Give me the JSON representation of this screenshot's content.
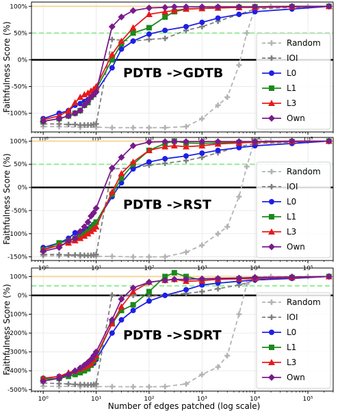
{
  "figure": {
    "xlabel": "Number of edges patched (log scale)",
    "ylabel": "Faithfulness Score (%)"
  },
  "colors": {
    "Random": "#b3b3b3",
    "IOI": "#7f7f7f",
    "L0": "#1f1fe6",
    "L1": "#1a8a1a",
    "L3": "#e61a1a",
    "Own": "#7a1a8c",
    "ref100": "#f5d89a",
    "ref50": "#90ee90",
    "zero": "#000000"
  },
  "chart_data": [
    {
      "type": "line",
      "title": "PDTB ->GDTB",
      "xlabel": "",
      "ylabel": "Faithfulness Score (%)",
      "xscale": "log",
      "xlim": [
        0.6,
        300000
      ],
      "ylim": [
        -135,
        108
      ],
      "yticks": [
        -100,
        -50,
        0,
        50,
        100
      ],
      "ytick_labels": [
        "-100%",
        "-50%",
        "0%",
        "50%",
        "100%"
      ],
      "xtick_labels": [
        "10⁰",
        "10¹",
        "10²",
        "10³",
        "10⁴",
        "10⁵"
      ],
      "reference_lines": [
        100,
        50,
        0
      ],
      "legend": [
        "Random",
        "IOI",
        "L0",
        "L1",
        "L3",
        "Own"
      ],
      "legend_position": "lower right",
      "series": [
        {
          "name": "Random",
          "x": [
            1,
            2,
            5,
            10,
            20,
            50,
            100,
            200,
            500,
            1000,
            2000,
            3000,
            5000,
            7000,
            10000,
            20000,
            50000,
            100000,
            250000
          ],
          "y": [
            -125,
            -125,
            -126,
            -126,
            -127,
            -127,
            -127,
            -127,
            -125,
            -110,
            -85,
            -70,
            -10,
            50,
            97,
            100,
            100,
            100,
            100
          ]
        },
        {
          "name": "IOI",
          "x": [
            1,
            2,
            3,
            4,
            5,
            6,
            7,
            8,
            9,
            10,
            20,
            50,
            100,
            200,
            500,
            1000,
            2000,
            5000,
            10000,
            50000,
            250000
          ],
          "y": [
            -120,
            -120,
            -121,
            -121,
            -122,
            -122,
            -122,
            -122,
            -121,
            -120,
            38,
            35,
            38,
            40,
            55,
            62,
            72,
            85,
            95,
            98,
            100
          ]
        },
        {
          "name": "L0",
          "x": [
            1,
            2,
            3,
            4,
            5,
            6,
            7,
            8,
            9,
            10,
            20,
            30,
            50,
            100,
            200,
            500,
            1000,
            2000,
            5000,
            10000,
            50000,
            250000
          ],
          "y": [
            -110,
            -100,
            -95,
            -85,
            -82,
            -78,
            -75,
            -70,
            -65,
            -60,
            -15,
            20,
            35,
            48,
            55,
            62,
            70,
            78,
            85,
            90,
            95,
            100
          ]
        },
        {
          "name": "L1",
          "x": [
            1,
            2,
            3,
            4,
            5,
            6,
            7,
            8,
            9,
            10,
            20,
            30,
            50,
            100,
            200,
            300,
            500,
            1000,
            2000,
            5000,
            10000,
            50000,
            250000
          ],
          "y": [
            -115,
            -110,
            -105,
            -100,
            -95,
            -85,
            -80,
            -70,
            -65,
            -55,
            0,
            30,
            50,
            60,
            80,
            90,
            95,
            96,
            97,
            98,
            99,
            99,
            100
          ]
        },
        {
          "name": "L3",
          "x": [
            1,
            2,
            3,
            4,
            5,
            6,
            7,
            8,
            9,
            10,
            20,
            30,
            50,
            100,
            200,
            300,
            500,
            1000,
            2000,
            5000,
            10000,
            50000,
            250000
          ],
          "y": [
            -112,
            -105,
            -95,
            -80,
            -70,
            -65,
            -62,
            -58,
            -55,
            -50,
            10,
            35,
            60,
            85,
            90,
            92,
            95,
            96,
            97,
            98,
            98,
            99,
            100
          ]
        },
        {
          "name": "Own",
          "x": [
            1,
            2,
            3,
            4,
            5,
            6,
            7,
            8,
            9,
            10,
            20,
            30,
            50,
            100,
            200,
            300,
            500,
            1000,
            2000,
            5000,
            10000,
            50000,
            250000
          ],
          "y": [
            -115,
            -110,
            -105,
            -100,
            -95,
            -85,
            -78,
            -70,
            -65,
            -60,
            62,
            80,
            92,
            97,
            98,
            99,
            99,
            99,
            99,
            99,
            99,
            100,
            100
          ]
        }
      ]
    },
    {
      "type": "line",
      "title": "PDTB ->RST",
      "xlabel": "",
      "ylabel": "Faithfulness Score (%)",
      "xscale": "log",
      "xlim": [
        0.6,
        300000
      ],
      "ylim": [
        -158,
        108
      ],
      "yticks": [
        -150,
        -100,
        -50,
        0,
        50,
        100
      ],
      "ytick_labels": [
        "-150%",
        "-100%",
        "-50%",
        "0%",
        "50%",
        "100%"
      ],
      "xtick_labels": [
        "10⁰",
        "10¹",
        "10²",
        "10³",
        "10⁴",
        "10⁵"
      ],
      "reference_lines": [
        100,
        50,
        0
      ],
      "legend": [
        "Random",
        "IOI",
        "L0",
        "L1",
        "L3",
        "Own"
      ],
      "legend_position": "lower right",
      "series": [
        {
          "name": "Random",
          "x": [
            1,
            2,
            5,
            10,
            20,
            50,
            100,
            200,
            500,
            1000,
            2000,
            3000,
            5000,
            7000,
            10000,
            20000,
            50000,
            100000,
            250000
          ],
          "y": [
            -148,
            -148,
            -149,
            -149,
            -149,
            -150,
            -150,
            -150,
            -140,
            -125,
            -100,
            -85,
            -20,
            45,
            105,
            100,
            100,
            100,
            100
          ]
        },
        {
          "name": "IOI",
          "x": [
            1,
            2,
            3,
            4,
            5,
            6,
            7,
            8,
            9,
            10,
            20,
            50,
            100,
            200,
            500,
            1000,
            2000,
            5000,
            10000,
            50000,
            250000
          ],
          "y": [
            -145,
            -145,
            -146,
            -146,
            -146,
            -147,
            -147,
            -147,
            -146,
            -145,
            40,
            42,
            48,
            52,
            58,
            65,
            75,
            88,
            95,
            98,
            100
          ]
        },
        {
          "name": "L0",
          "x": [
            1,
            2,
            3,
            4,
            5,
            6,
            7,
            8,
            9,
            10,
            20,
            30,
            50,
            100,
            200,
            500,
            1000,
            2000,
            5000,
            10000,
            50000,
            250000
          ],
          "y": [
            -130,
            -120,
            -110,
            -98,
            -100,
            -95,
            -90,
            -85,
            -80,
            -75,
            -20,
            10,
            40,
            55,
            62,
            68,
            74,
            80,
            86,
            90,
            95,
            100
          ]
        },
        {
          "name": "L1",
          "x": [
            1,
            2,
            3,
            4,
            5,
            6,
            7,
            8,
            9,
            10,
            20,
            30,
            50,
            100,
            200,
            300,
            500,
            1000,
            2000,
            5000,
            10000,
            50000,
            250000
          ],
          "y": [
            -135,
            -120,
            -115,
            -110,
            -105,
            -100,
            -95,
            -88,
            -82,
            -75,
            -15,
            20,
            50,
            80,
            95,
            100,
            96,
            95,
            96,
            97,
            98,
            99,
            100
          ]
        },
        {
          "name": "L3",
          "x": [
            1,
            2,
            3,
            4,
            5,
            6,
            7,
            8,
            9,
            10,
            20,
            30,
            50,
            100,
            200,
            300,
            500,
            1000,
            2000,
            5000,
            10000,
            50000,
            250000
          ],
          "y": [
            -135,
            -125,
            -120,
            -115,
            -110,
            -105,
            -100,
            -95,
            -90,
            -85,
            -10,
            30,
            55,
            80,
            88,
            90,
            88,
            90,
            94,
            96,
            98,
            99,
            100
          ]
        },
        {
          "name": "Own",
          "x": [
            1,
            2,
            3,
            4,
            5,
            6,
            7,
            8,
            9,
            10,
            20,
            30,
            50,
            100,
            200,
            300,
            500,
            1000,
            2000,
            5000,
            10000,
            50000,
            250000
          ],
          "y": [
            -138,
            -130,
            -115,
            -110,
            -95,
            -85,
            -75,
            -62,
            -55,
            -45,
            42,
            65,
            90,
            98,
            99,
            99,
            99,
            99,
            99,
            99,
            99,
            100,
            100
          ]
        }
      ]
    },
    {
      "type": "line",
      "title": "PDTB ->SDRT",
      "xlabel": "Number of edges patched (log scale)",
      "ylabel": "Faithfulness Score (%)",
      "xscale": "log",
      "xlim": [
        0.6,
        300000
      ],
      "ylim": [
        -508,
        145
      ],
      "yticks": [
        -500,
        -400,
        -300,
        -200,
        -100,
        0,
        100
      ],
      "ytick_labels": [
        "-500%",
        "-400%",
        "-300%",
        "-200%",
        "-100%",
        "0%",
        "100%"
      ],
      "xtick_labels": [
        "10⁰",
        "10¹",
        "10²",
        "10³",
        "10⁴",
        "10⁵"
      ],
      "reference_lines": [
        100,
        50,
        0
      ],
      "legend": [
        "Random",
        "IOI",
        "L0",
        "L1",
        "L3",
        "Own"
      ],
      "legend_position": "lower right",
      "series": [
        {
          "name": "Random",
          "x": [
            1,
            2,
            5,
            10,
            20,
            50,
            100,
            200,
            500,
            1000,
            2000,
            3000,
            5000,
            7000,
            10000,
            20000,
            50000,
            100000,
            250000
          ],
          "y": [
            -482,
            -483,
            -483,
            -484,
            -484,
            -485,
            -485,
            -484,
            -470,
            -420,
            -380,
            -320,
            -100,
            60,
            98,
            100,
            100,
            100,
            100
          ]
        },
        {
          "name": "IOI",
          "x": [
            1,
            2,
            3,
            4,
            5,
            6,
            7,
            8,
            9,
            10,
            20,
            50,
            100,
            200,
            500,
            1000,
            2000,
            5000,
            10000,
            50000,
            250000
          ],
          "y": [
            -465,
            -468,
            -470,
            -472,
            -473,
            -474,
            -475,
            -475,
            -473,
            -470,
            2,
            0,
            -5,
            0,
            10,
            20,
            35,
            55,
            80,
            95,
            100
          ]
        },
        {
          "name": "L0",
          "x": [
            1,
            2,
            3,
            4,
            5,
            6,
            7,
            8,
            9,
            10,
            20,
            30,
            50,
            100,
            200,
            500,
            1000,
            2000,
            5000,
            10000,
            50000,
            250000
          ],
          "y": [
            -440,
            -430,
            -420,
            -410,
            -400,
            -390,
            -380,
            -370,
            -360,
            -340,
            -200,
            -130,
            -80,
            -30,
            0,
            30,
            55,
            65,
            75,
            82,
            90,
            100
          ]
        },
        {
          "name": "L1",
          "x": [
            1,
            2,
            3,
            4,
            5,
            6,
            7,
            8,
            9,
            10,
            20,
            30,
            50,
            100,
            200,
            300,
            500,
            1000,
            2000,
            5000,
            10000,
            50000,
            250000
          ],
          "y": [
            -445,
            -440,
            -430,
            -420,
            -410,
            -400,
            -390,
            -370,
            -350,
            -330,
            -150,
            -80,
            -50,
            20,
            100,
            120,
            100,
            80,
            85,
            88,
            90,
            95,
            100
          ]
        },
        {
          "name": "L3",
          "x": [
            1,
            2,
            3,
            4,
            5,
            6,
            7,
            8,
            9,
            10,
            20,
            30,
            50,
            100,
            200,
            300,
            500,
            1000,
            2000,
            5000,
            10000,
            50000,
            250000
          ],
          "y": [
            -440,
            -430,
            -410,
            -400,
            -390,
            -380,
            -370,
            -360,
            -340,
            -320,
            -150,
            -60,
            20,
            70,
            80,
            85,
            75,
            78,
            85,
            88,
            90,
            95,
            100
          ]
        },
        {
          "name": "Own",
          "x": [
            1,
            2,
            3,
            4,
            5,
            6,
            7,
            8,
            9,
            10,
            20,
            30,
            50,
            100,
            200,
            300,
            500,
            1000,
            2000,
            5000,
            10000,
            50000,
            250000
          ],
          "y": [
            -455,
            -440,
            -420,
            -400,
            -385,
            -370,
            -355,
            -340,
            -320,
            -300,
            -130,
            -20,
            40,
            70,
            80,
            85,
            85,
            88,
            90,
            92,
            95,
            98,
            100
          ]
        }
      ]
    }
  ]
}
